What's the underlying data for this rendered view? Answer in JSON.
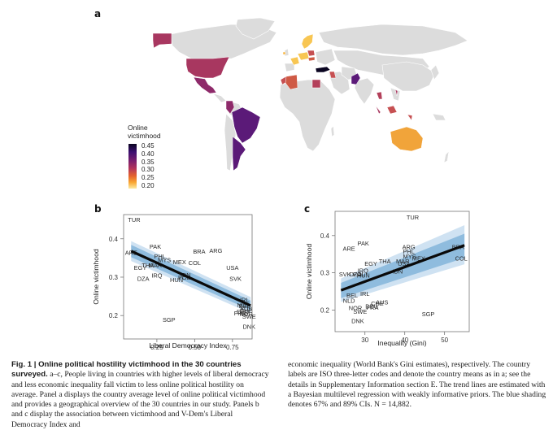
{
  "figure": {
    "panel_labels": {
      "a": "a",
      "b": "b",
      "c": "c"
    }
  },
  "map": {
    "legend_title_line1": "Online",
    "legend_title_line2": "victimhood",
    "legend_ticks": [
      "0.45",
      "0.40",
      "0.35",
      "0.30",
      "0.25",
      "0.20"
    ],
    "colors": {
      "no_data": "#dcdcdc",
      "high": "#0a0420",
      "purple": "#5b1a78",
      "magenta": "#8e2a6a",
      "red": "#b3405a",
      "orange_red": "#cf5a45",
      "orange": "#f1a43a",
      "yellow": "#f8c653"
    }
  },
  "chart_data": [
    {
      "type": "scatter",
      "panel": "b",
      "title": "",
      "xlabel": "Liberal Democracy Index",
      "ylabel": "Online victimhood",
      "xlim": [
        0.03,
        0.88
      ],
      "ylim": [
        0.139,
        0.463
      ],
      "xticks": [
        0.25,
        0.5,
        0.75
      ],
      "xtick_labels": [
        "0.25",
        "0.50",
        "0.75"
      ],
      "yticks": [
        0.2,
        0.3,
        0.4
      ],
      "ytick_labels": [
        "0.2",
        "0.3",
        "0.4"
      ],
      "points": [
        {
          "label": "TUR",
          "x": 0.1,
          "y": 0.45
        },
        {
          "label": "PAK",
          "x": 0.24,
          "y": 0.38
        },
        {
          "label": "ARE",
          "x": 0.08,
          "y": 0.365
        },
        {
          "label": "PHL",
          "x": 0.27,
          "y": 0.355
        },
        {
          "label": "MYS",
          "x": 0.3,
          "y": 0.345
        },
        {
          "label": "MEX",
          "x": 0.4,
          "y": 0.34
        },
        {
          "label": "COL",
          "x": 0.5,
          "y": 0.338
        },
        {
          "label": "BRA",
          "x": 0.53,
          "y": 0.368
        },
        {
          "label": "ARG",
          "x": 0.64,
          "y": 0.37
        },
        {
          "label": "EGY",
          "x": 0.14,
          "y": 0.325
        },
        {
          "label": "THA",
          "x": 0.19,
          "y": 0.332
        },
        {
          "label": "MAR",
          "x": 0.24,
          "y": 0.332
        },
        {
          "label": "IRQ",
          "x": 0.25,
          "y": 0.305
        },
        {
          "label": "DZA",
          "x": 0.16,
          "y": 0.297
        },
        {
          "label": "HUN",
          "x": 0.38,
          "y": 0.294
        },
        {
          "label": "POL",
          "x": 0.43,
          "y": 0.3
        },
        {
          "label": "IDN",
          "x": 0.44,
          "y": 0.306
        },
        {
          "label": "USA",
          "x": 0.75,
          "y": 0.325
        },
        {
          "label": "SVK",
          "x": 0.77,
          "y": 0.297
        },
        {
          "label": "IRL",
          "x": 0.83,
          "y": 0.242
        },
        {
          "label": "NLD",
          "x": 0.82,
          "y": 0.228
        },
        {
          "label": "BEL",
          "x": 0.83,
          "y": 0.226
        },
        {
          "label": "AUS",
          "x": 0.84,
          "y": 0.218
        },
        {
          "label": "FRA",
          "x": 0.8,
          "y": 0.207
        },
        {
          "label": "DEU",
          "x": 0.82,
          "y": 0.211
        },
        {
          "label": "CHE",
          "x": 0.84,
          "y": 0.214
        },
        {
          "label": "NOR",
          "x": 0.84,
          "y": 0.205
        },
        {
          "label": "SWE",
          "x": 0.86,
          "y": 0.198
        },
        {
          "label": "SGP",
          "x": 0.33,
          "y": 0.19
        },
        {
          "label": "DNK",
          "x": 0.86,
          "y": 0.172
        }
      ],
      "trend": {
        "x": [
          0.08,
          0.87
        ],
        "y": [
          0.368,
          0.226
        ]
      },
      "ci89": {
        "x": [
          0.08,
          0.87
        ],
        "lower": [
          0.342,
          0.206
        ],
        "upper": [
          0.394,
          0.248
        ]
      },
      "ci67": {
        "x": [
          0.08,
          0.87
        ],
        "lower": [
          0.352,
          0.214
        ],
        "upper": [
          0.384,
          0.239
        ]
      }
    },
    {
      "type": "scatter",
      "panel": "c",
      "title": "",
      "xlabel": "Inequality (Gini)",
      "ylabel": "Online victimhood",
      "xlim": [
        22.5,
        56.2
      ],
      "ylim": [
        0.142,
        0.465
      ],
      "xticks": [
        30,
        40,
        50
      ],
      "xtick_labels": [
        "30",
        "40",
        "50"
      ],
      "yticks": [
        0.2,
        0.3,
        0.4
      ],
      "ytick_labels": [
        "0.2",
        "0.3",
        "0.4"
      ],
      "points": [
        {
          "label": "TUR",
          "x": 42.0,
          "y": 0.45
        },
        {
          "label": "PAK",
          "x": 29.6,
          "y": 0.38
        },
        {
          "label": "ARE",
          "x": 26.0,
          "y": 0.366
        },
        {
          "label": "ARG",
          "x": 41.0,
          "y": 0.37
        },
        {
          "label": "PHL",
          "x": 41.0,
          "y": 0.358
        },
        {
          "label": "MYS",
          "x": 41.2,
          "y": 0.345
        },
        {
          "label": "MEX",
          "x": 43.5,
          "y": 0.34
        },
        {
          "label": "BRA",
          "x": 53.4,
          "y": 0.37
        },
        {
          "label": "COL",
          "x": 54.2,
          "y": 0.34
        },
        {
          "label": "EGY",
          "x": 31.5,
          "y": 0.325
        },
        {
          "label": "THA",
          "x": 35.0,
          "y": 0.332
        },
        {
          "label": "MAR",
          "x": 39.5,
          "y": 0.332
        },
        {
          "label": "USA",
          "x": 39.8,
          "y": 0.325
        },
        {
          "label": "IDN",
          "x": 38.2,
          "y": 0.305
        },
        {
          "label": "IRQ",
          "x": 29.5,
          "y": 0.307
        },
        {
          "label": "SVK",
          "x": 25.0,
          "y": 0.297
        },
        {
          "label": "DZA",
          "x": 27.6,
          "y": 0.297
        },
        {
          "label": "POL",
          "x": 28.5,
          "y": 0.297
        },
        {
          "label": "HUN",
          "x": 29.6,
          "y": 0.294
        },
        {
          "label": "BEL",
          "x": 26.8,
          "y": 0.24
        },
        {
          "label": "NLD",
          "x": 26.0,
          "y": 0.226
        },
        {
          "label": "IRL",
          "x": 30.0,
          "y": 0.245
        },
        {
          "label": "AUS",
          "x": 34.3,
          "y": 0.222
        },
        {
          "label": "CHE",
          "x": 33.1,
          "y": 0.218
        },
        {
          "label": "DEU",
          "x": 31.7,
          "y": 0.211
        },
        {
          "label": "FRA",
          "x": 31.9,
          "y": 0.208
        },
        {
          "label": "NOR",
          "x": 27.6,
          "y": 0.206
        },
        {
          "label": "SWE",
          "x": 28.8,
          "y": 0.197
        },
        {
          "label": "SGP",
          "x": 45.9,
          "y": 0.19
        },
        {
          "label": "DNK",
          "x": 28.2,
          "y": 0.172
        }
      ],
      "trend": {
        "x": [
          24.0,
          55.0
        ],
        "y": [
          0.253,
          0.374
        ]
      },
      "ci89": {
        "x": [
          24.0,
          55.0
        ],
        "lower": [
          0.222,
          0.323
        ],
        "upper": [
          0.285,
          0.428
        ]
      },
      "ci67": {
        "x": [
          24.0,
          55.0
        ],
        "lower": [
          0.232,
          0.34
        ],
        "upper": [
          0.273,
          0.405
        ]
      }
    }
  ],
  "caption": {
    "title": "Fig. 1 | Online political hostility victimhood in the 30 countries surveyed.",
    "left_body": "a–c, People living in countries with higher levels of liberal democracy and less economic inequality fall victim to less online political hostility on average. Panel a displays the country average level of online political victimhood and provides a geographical overview of the 30 countries in our study. Panels b and c display the association between victimhood and V-Dem's Liberal Democracy Index and",
    "right_body": "economic inequality (World Bank's Gini estimates), respectively. The country labels are ISO three-letter codes and denote the country means as in a; see the details in Supplementary Information section E. The trend lines are estimated with a Bayesian multilevel regression with weakly informative priors. The blue shading denotes 67% and 89% CIs. N = 14,882."
  }
}
